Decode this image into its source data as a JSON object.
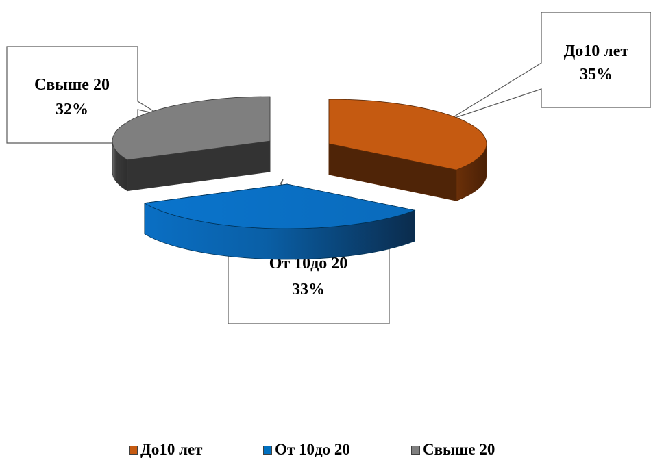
{
  "chart_data": {
    "type": "pie",
    "style": "3d-exploded",
    "title": "",
    "slices": [
      {
        "label": "До10 лет",
        "value": 35,
        "display": "35%",
        "color": "#c55a11"
      },
      {
        "label": "От 10до 20",
        "value": 33,
        "display": "33%",
        "color": "#0070c0"
      },
      {
        "label": "Свыше 20",
        "value": 32,
        "display": "32%",
        "color": "#7f7f7f"
      }
    ],
    "legend": {
      "position": "bottom",
      "items": [
        "До10 лет",
        "От 10до 20",
        "Свыше 20"
      ]
    }
  }
}
